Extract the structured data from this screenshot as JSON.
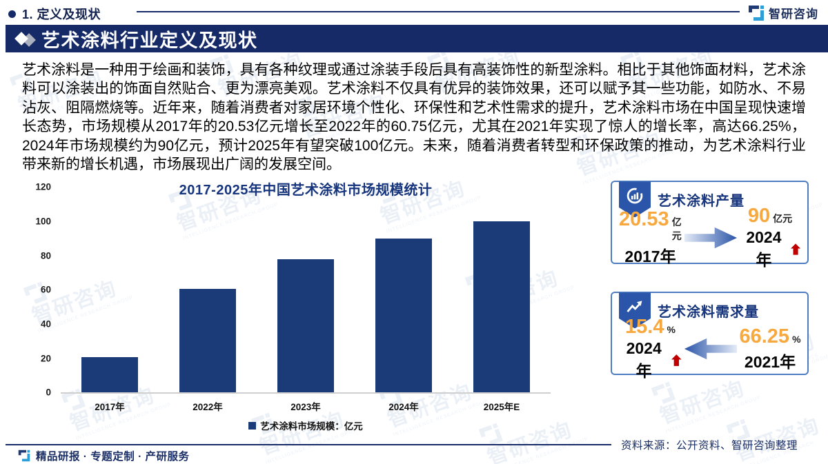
{
  "header": {
    "section_label": "1. 定义及现状",
    "brand": {
      "name": "智研咨询"
    }
  },
  "banner": {
    "title": "艺术涂料行业定义及现状"
  },
  "article": {
    "paragraph": "艺术涂料是一种用于绘画和装饰，具有各种纹理或通过涂装手段后具有高装饰性的新型涂料。相比于其他饰面材料，艺术涂料可以涂装出的饰面自然贴合、更为漂亮美观。艺术涂料不仅具有优异的装饰效果，还可以赋予其一些功能，如防水、不易沾灰、阻隔燃烧等。近年来，随着消费者对家居环境个性化、环保性和艺术性需求的提升，艺术涂料市场在中国呈现快速增长态势，市场规模从2017年的20.53亿元增长至2022年的60.75亿元，尤其在2021年实现了惊人的增长率，高达66.25%，2024年市场规模约为90亿元，预计2025年有望突破100亿元。未来，随着消费者转型和环保政策的推动，为艺术涂料行业带来新的增长机遇，市场展现出广阔的发展空间。"
  },
  "chart_data": {
    "type": "bar",
    "title": "2017-2025年中国艺术涂料市场规模统计",
    "categories": [
      "2017年",
      "2022年",
      "2023年",
      "2024年",
      "2025年E"
    ],
    "values": [
      20.53,
      60.75,
      78,
      90,
      100
    ],
    "xlabel": "",
    "ylabel": "",
    "ylim": [
      0,
      120
    ],
    "yticks": [
      0,
      20,
      40,
      60,
      80,
      100,
      120
    ],
    "grid": false,
    "legend": [
      "艺术涂料市场规模：亿元"
    ],
    "legend_position": "bottom",
    "bar_color": "#1b3a78"
  },
  "cards": [
    {
      "title": "艺术涂料产量",
      "icon": "donut-chart-icon",
      "arrow_direction": "right",
      "left": {
        "value": "20.53",
        "unit": "亿元",
        "label": "2017年"
      },
      "right": {
        "value": "90",
        "unit": "亿元",
        "label": "2024年"
      }
    },
    {
      "title": "艺术涂料需求量",
      "icon": "trend-up-icon",
      "arrow_direction": "left",
      "left": {
        "value": "15.4",
        "unit": "%",
        "label": "2024年"
      },
      "right": {
        "value": "66.25",
        "unit": "%",
        "label": "2021年"
      }
    }
  ],
  "footer": {
    "tagline": "精品研报 · 专题定制 · 产研服务",
    "source": "资料来源：公开资料、智研咨询整理"
  },
  "watermark": {
    "text": "智研咨询",
    "subtext": "INTELLIGENCE RESEARCH GROUP"
  },
  "colors": {
    "navy": "#152a66",
    "bar": "#1b3a78",
    "accent_orange": "#f7a83e",
    "alert_red": "#c00000",
    "card_border": "#4d7cc0",
    "badge_blue": "#2b55a8",
    "title_blue": "#16357d"
  }
}
